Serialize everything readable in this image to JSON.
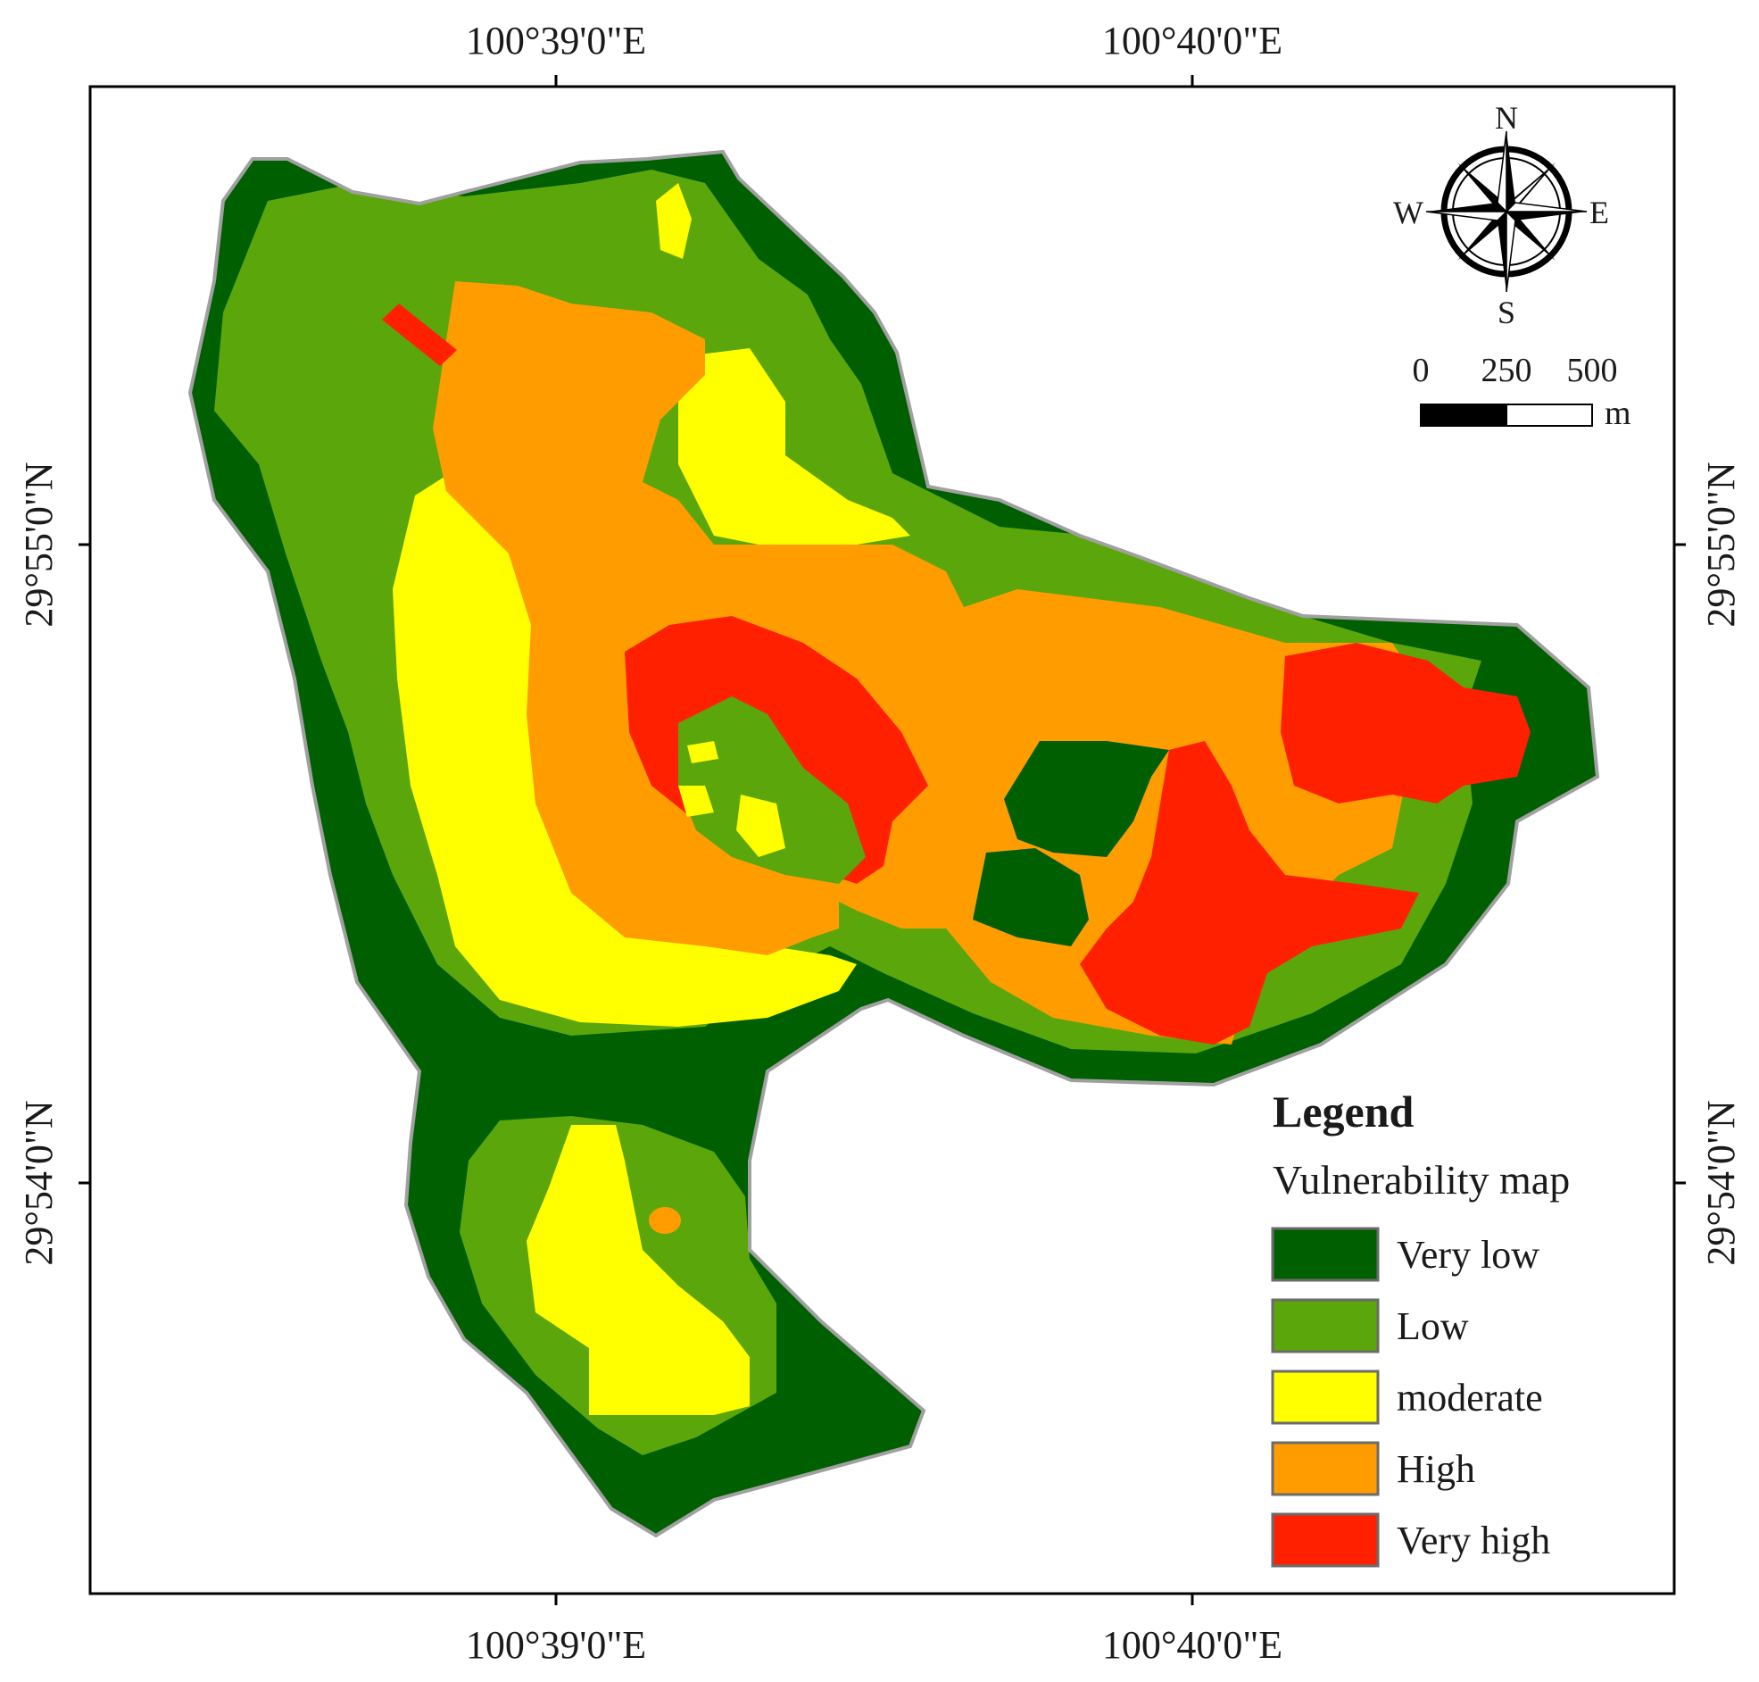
{
  "graticule": {
    "top": [
      "100°39'0\"E",
      "100°40'0\"E"
    ],
    "bottom": [
      "100°39'0\"E",
      "100°40'0\"E"
    ],
    "left": [
      "29°55'0\"N",
      "29°54'0\"N"
    ],
    "right": [
      "29°55'0\"N",
      "29°54'0\"N"
    ]
  },
  "north_arrow": {
    "n": "N",
    "s": "S",
    "e": "E",
    "w": "W"
  },
  "scale_bar": {
    "ticks": [
      "0",
      "250",
      "500"
    ],
    "unit": "m"
  },
  "legend": {
    "title": "Legend",
    "subtitle": "Vulnerability map",
    "classes": [
      {
        "label": "Very low",
        "color": "#005f00"
      },
      {
        "label": "Low",
        "color": "#5ba60a"
      },
      {
        "label": "moderate",
        "color": "#ffff00"
      },
      {
        "label": "High",
        "color": "#ff9c00"
      },
      {
        "label": "Very high",
        "color": "#ff2000"
      }
    ]
  }
}
